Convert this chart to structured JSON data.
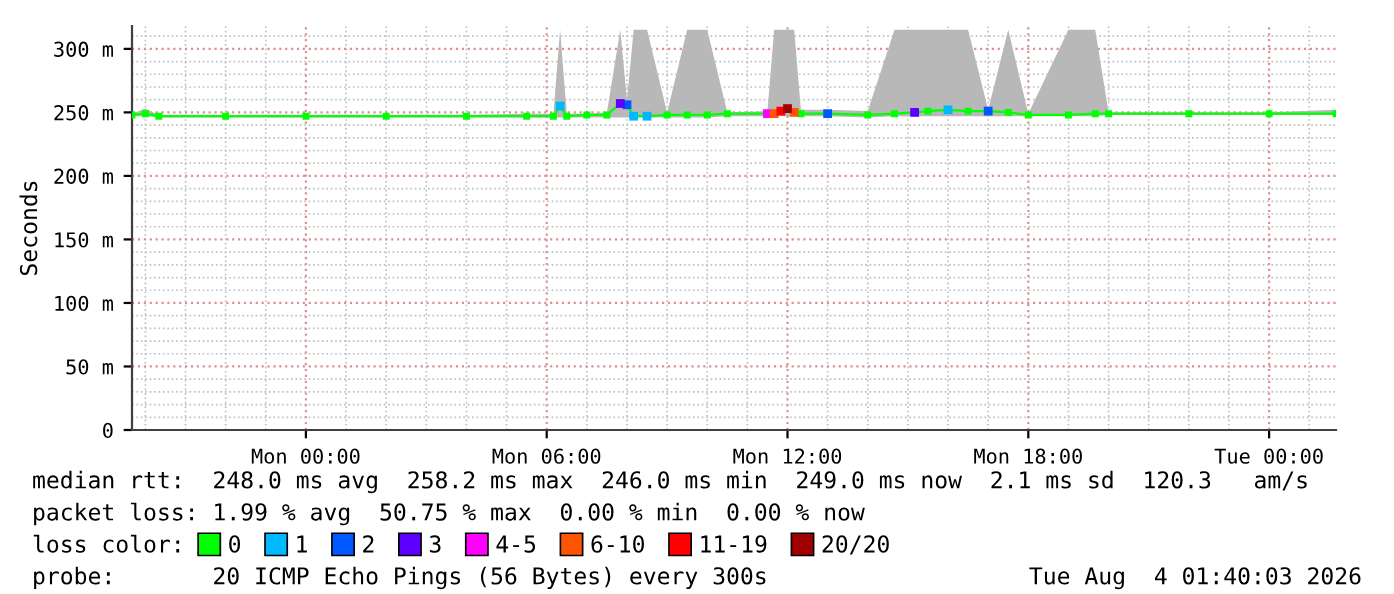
{
  "chart_data": {
    "type": "line",
    "ylabel": "Seconds",
    "legend_title": "loss color:",
    "legend": "bottom",
    "grid": true,
    "marker": "square",
    "xlim": [
      "2026-08-02T19:40",
      "2026-08-04T01:40"
    ],
    "xticks": [
      {
        "value": "2026-08-03T00:00",
        "label": "Mon 00:00"
      },
      {
        "value": "2026-08-03T06:00",
        "label": "Mon 06:00"
      },
      {
        "value": "2026-08-03T12:00",
        "label": "Mon 12:00"
      },
      {
        "value": "2026-08-03T18:00",
        "label": "Mon 18:00"
      },
      {
        "value": "2026-08-04T00:00",
        "label": "Tue 00:00"
      }
    ],
    "ylim": [
      0,
      318
    ],
    "yticks": [
      0,
      {
        "value": 50,
        "label": "50 m"
      },
      {
        "value": 100,
        "label": "100 m"
      },
      {
        "value": 150,
        "label": "150 m"
      },
      {
        "value": 200,
        "label": "200 m"
      },
      {
        "value": 250,
        "label": "250 m"
      },
      {
        "value": 300,
        "label": "300 m"
      }
    ],
    "series": [
      {
        "name": "0",
        "color": "#00ff00",
        "x": [
          "2026-08-02T19:40",
          "2026-08-02T20:00",
          "2026-08-02T20:20",
          "2026-08-02T22:00",
          "2026-08-03T00:00",
          "2026-08-03T02:00",
          "2026-08-03T04:00",
          "2026-08-03T05:30",
          "2026-08-03T06:10",
          "2026-08-03T06:20",
          "2026-08-03T06:30",
          "2026-08-03T07:00",
          "2026-08-03T07:30",
          "2026-08-03T07:50",
          "2026-08-03T08:00",
          "2026-08-03T08:10",
          "2026-08-03T08:30",
          "2026-08-03T09:00",
          "2026-08-03T09:30",
          "2026-08-03T10:00",
          "2026-08-03T10:30",
          "2026-08-03T11:30",
          "2026-08-03T11:40",
          "2026-08-03T11:50",
          "2026-08-03T12:00",
          "2026-08-03T12:10",
          "2026-08-03T12:20",
          "2026-08-03T13:00",
          "2026-08-03T14:00",
          "2026-08-03T14:40",
          "2026-08-03T15:10",
          "2026-08-03T15:30",
          "2026-08-03T16:00",
          "2026-08-03T16:30",
          "2026-08-03T17:00",
          "2026-08-03T17:30",
          "2026-08-03T18:00",
          "2026-08-03T19:00",
          "2026-08-03T19:40",
          "2026-08-03T20:00",
          "2026-08-03T22:00",
          "2026-08-04T00:00",
          "2026-08-04T01:40"
        ],
        "values": [
          248,
          249,
          247,
          247,
          247,
          247,
          247,
          247,
          247,
          255,
          247,
          248,
          248,
          257,
          256,
          247,
          247,
          248,
          248,
          248,
          249,
          249,
          249,
          251,
          253,
          250,
          249,
          249,
          248,
          249,
          250,
          251,
          252,
          251,
          251,
          250,
          248,
          248,
          249,
          249,
          249,
          249,
          249
        ],
        "lower": [
          247,
          247,
          246,
          246,
          246,
          246,
          246,
          246,
          246,
          246,
          246,
          246,
          246,
          246,
          246,
          246,
          246,
          246,
          246,
          246,
          247,
          247,
          247,
          247,
          247,
          247,
          247,
          247,
          246,
          247,
          247,
          247,
          247,
          247,
          247,
          247,
          247,
          247,
          247,
          248,
          248,
          248,
          248
        ],
        "upper": [
          249,
          253,
          248,
          248,
          248,
          248,
          248,
          249,
          249,
          315,
          249,
          249,
          250,
          315,
          260,
          315,
          315,
          250,
          315,
          315,
          250,
          251,
          315,
          315,
          315,
          315,
          252,
          252,
          251,
          315,
          315,
          315,
          315,
          315,
          252,
          315,
          249,
          315,
          315,
          250,
          250,
          250,
          252
        ]
      },
      {
        "name": "1",
        "type": "scatter",
        "color": "#00b8ff",
        "x": [
          "2026-08-03T06:20",
          "2026-08-03T08:10",
          "2026-08-03T08:30",
          "2026-08-03T16:00"
        ],
        "values": [
          255,
          247,
          247,
          252
        ]
      },
      {
        "name": "2",
        "type": "scatter",
        "color": "#0059ff",
        "x": [
          "2026-08-03T08:00",
          "2026-08-03T13:00",
          "2026-08-03T17:00"
        ],
        "values": [
          256,
          249,
          251
        ]
      },
      {
        "name": "3",
        "type": "scatter",
        "color": "#5e00ff",
        "x": [
          "2026-08-03T07:50",
          "2026-08-03T15:10"
        ],
        "values": [
          257,
          250
        ]
      },
      {
        "name": "4-5",
        "type": "scatter",
        "color": "#ff00ff",
        "x": [
          "2026-08-03T11:30"
        ],
        "values": [
          249
        ]
      },
      {
        "name": "6-10",
        "type": "scatter",
        "color": "#ff5500",
        "x": [
          "2026-08-03T11:40",
          "2026-08-03T12:10"
        ],
        "values": [
          249,
          250
        ]
      },
      {
        "name": "11-19",
        "type": "scatter",
        "color": "#ff0000",
        "x": [
          "2026-08-03T11:50"
        ],
        "values": [
          251
        ]
      },
      {
        "name": "20/20",
        "type": "scatter",
        "color": "#a10000",
        "x": [
          "2026-08-03T12:00"
        ],
        "values": [
          253
        ]
      }
    ],
    "annotations": [
      "median rtt:  248.0 ms avg  258.2 ms max  246.0 ms min  249.0 ms now  2.1 ms sd  120.3   am/s",
      "packet loss: 1.99 % avg  50.75 % max  0.00 % min  0.00 % now",
      "probe:       20 ICMP Echo Pings (56 Bytes) every 300s",
      "Tue Aug  4 01:40:03 2026"
    ]
  }
}
